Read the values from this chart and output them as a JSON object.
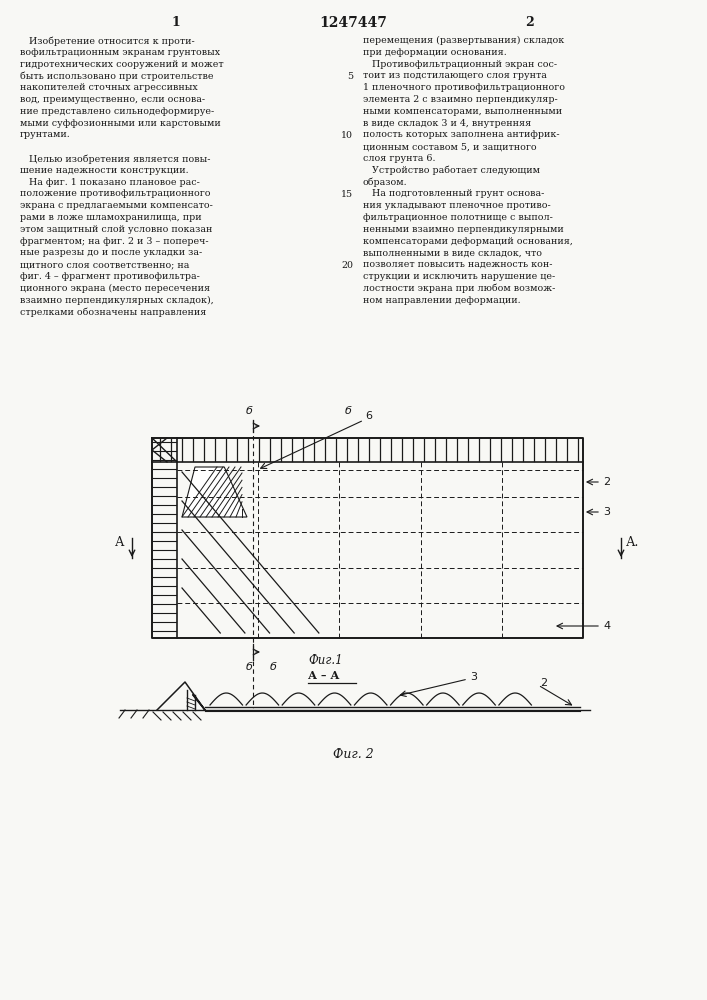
{
  "page_width": 7.07,
  "page_height": 10.0,
  "bg_color": "#f8f8f5",
  "text_color": "#1a1a1a",
  "title_number": "1247447",
  "col1_text": [
    "   Изобретение относится к проти-",
    "вофильтрационным экранам грунтовых",
    "гидротехнических сооружений и может",
    "быть использовано при строительстве",
    "накопителей сточных агрессивных",
    "вод, преимущественно, если основа-",
    "ние представлено сильнодеформируе-",
    "мыми суффозионными или карстовыми",
    "грунтами.",
    "",
    "   Целью изобретения является повы-",
    "шение надежности конструкции.",
    "   На фиг. 1 показано плановое рас-",
    "положение противофильтрационного",
    "экрана с предлагаемыми компенсато-",
    "рами в ложе шламохранилища, при",
    "этом защитный слой условно показан",
    "фрагментом; на фиг. 2 и 3 – попереч-",
    "ные разрезы до и после укладки за-",
    "щитного слоя соответственно; на",
    "фиг. 4 – фрагмент противофильтра-",
    "ционного экрана (место пересечения",
    "взаимно перпендикулярных складок),",
    "стрелками обозначены направления"
  ],
  "col2_text": [
    "перемещения (развертывания) складок",
    "при деформации основания.",
    "   Противофильтрационный экран сос-",
    "тоит из подстилающего слоя грунта",
    "1 пленочного противофильтрационного",
    "элемента 2 с взаимно перпендикуляр-",
    "ными компенсаторами, выполненными",
    "в виде складок 3 и 4, внутренняя",
    "полость которых заполнена антифрик-",
    "ционным составом 5, и защитного",
    "слоя грунта 6.",
    "   Устройство работает следующим",
    "образом.",
    "   На подготовленный грунт основа-",
    "ния укладывают пленочное противо-",
    "фильтрационное полотнище с выпол-",
    "ненными взаимно перпендикулярными",
    "компенсаторами деформаций основания,",
    "выполненными в виде складок, что",
    "позволяет повысить надежность кон-",
    "струкции и исключить нарушение це-",
    "лостности экрана при любом возмож-",
    "ном направлении деформации."
  ],
  "line_nums_col2": {
    "3": "5",
    "8": "10",
    "13": "15",
    "19": "20"
  },
  "fig1_label": "Фиг.1",
  "fig2_label": "Фиг. 2",
  "aa_label": "А – А"
}
